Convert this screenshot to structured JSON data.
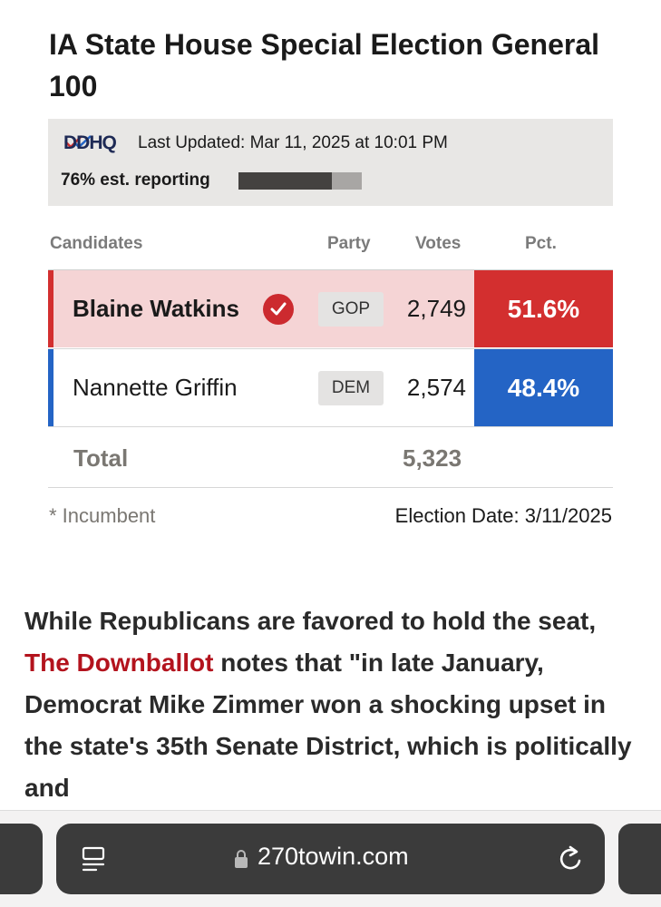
{
  "title": "IA State House Special Election General 100",
  "info": {
    "logo_text": "DDHQ",
    "last_updated": "Last Updated: Mar 11, 2025 at 10:01 PM",
    "reporting_label": "76% est. reporting",
    "reporting_fraction": 0.76
  },
  "table": {
    "headers": {
      "candidates": "Candidates",
      "party": "Party",
      "votes": "Votes",
      "pct": "Pct."
    },
    "rows": [
      {
        "name": "Blaine Watkins",
        "party": "GOP",
        "votes": "2,749",
        "pct": "51.6%",
        "winner": true,
        "color": "#d32f2f",
        "row_bg": "#f5d4d5"
      },
      {
        "name": "Nannette Griffin",
        "party": "DEM",
        "votes": "2,574",
        "pct": "48.4%",
        "winner": false,
        "color": "#2464c5",
        "row_bg": "#ffffff"
      }
    ],
    "total_label": "Total",
    "total_votes": "5,323"
  },
  "footer": {
    "incumbent_note": "* Incumbent",
    "election_date": "Election Date: 3/11/2025"
  },
  "article": {
    "before_link": "While Republicans are favored to hold the seat, ",
    "link_text": "The Downballot",
    "after_link": " notes that \"in late January, Democrat Mike Zimmer won a shocking upset in the state's 35th Senate District, which is politically and"
  },
  "browser": {
    "url": "270towin.com"
  },
  "colors": {
    "gop": "#d32f2f",
    "dem": "#2464c5",
    "link": "#b3131d"
  }
}
